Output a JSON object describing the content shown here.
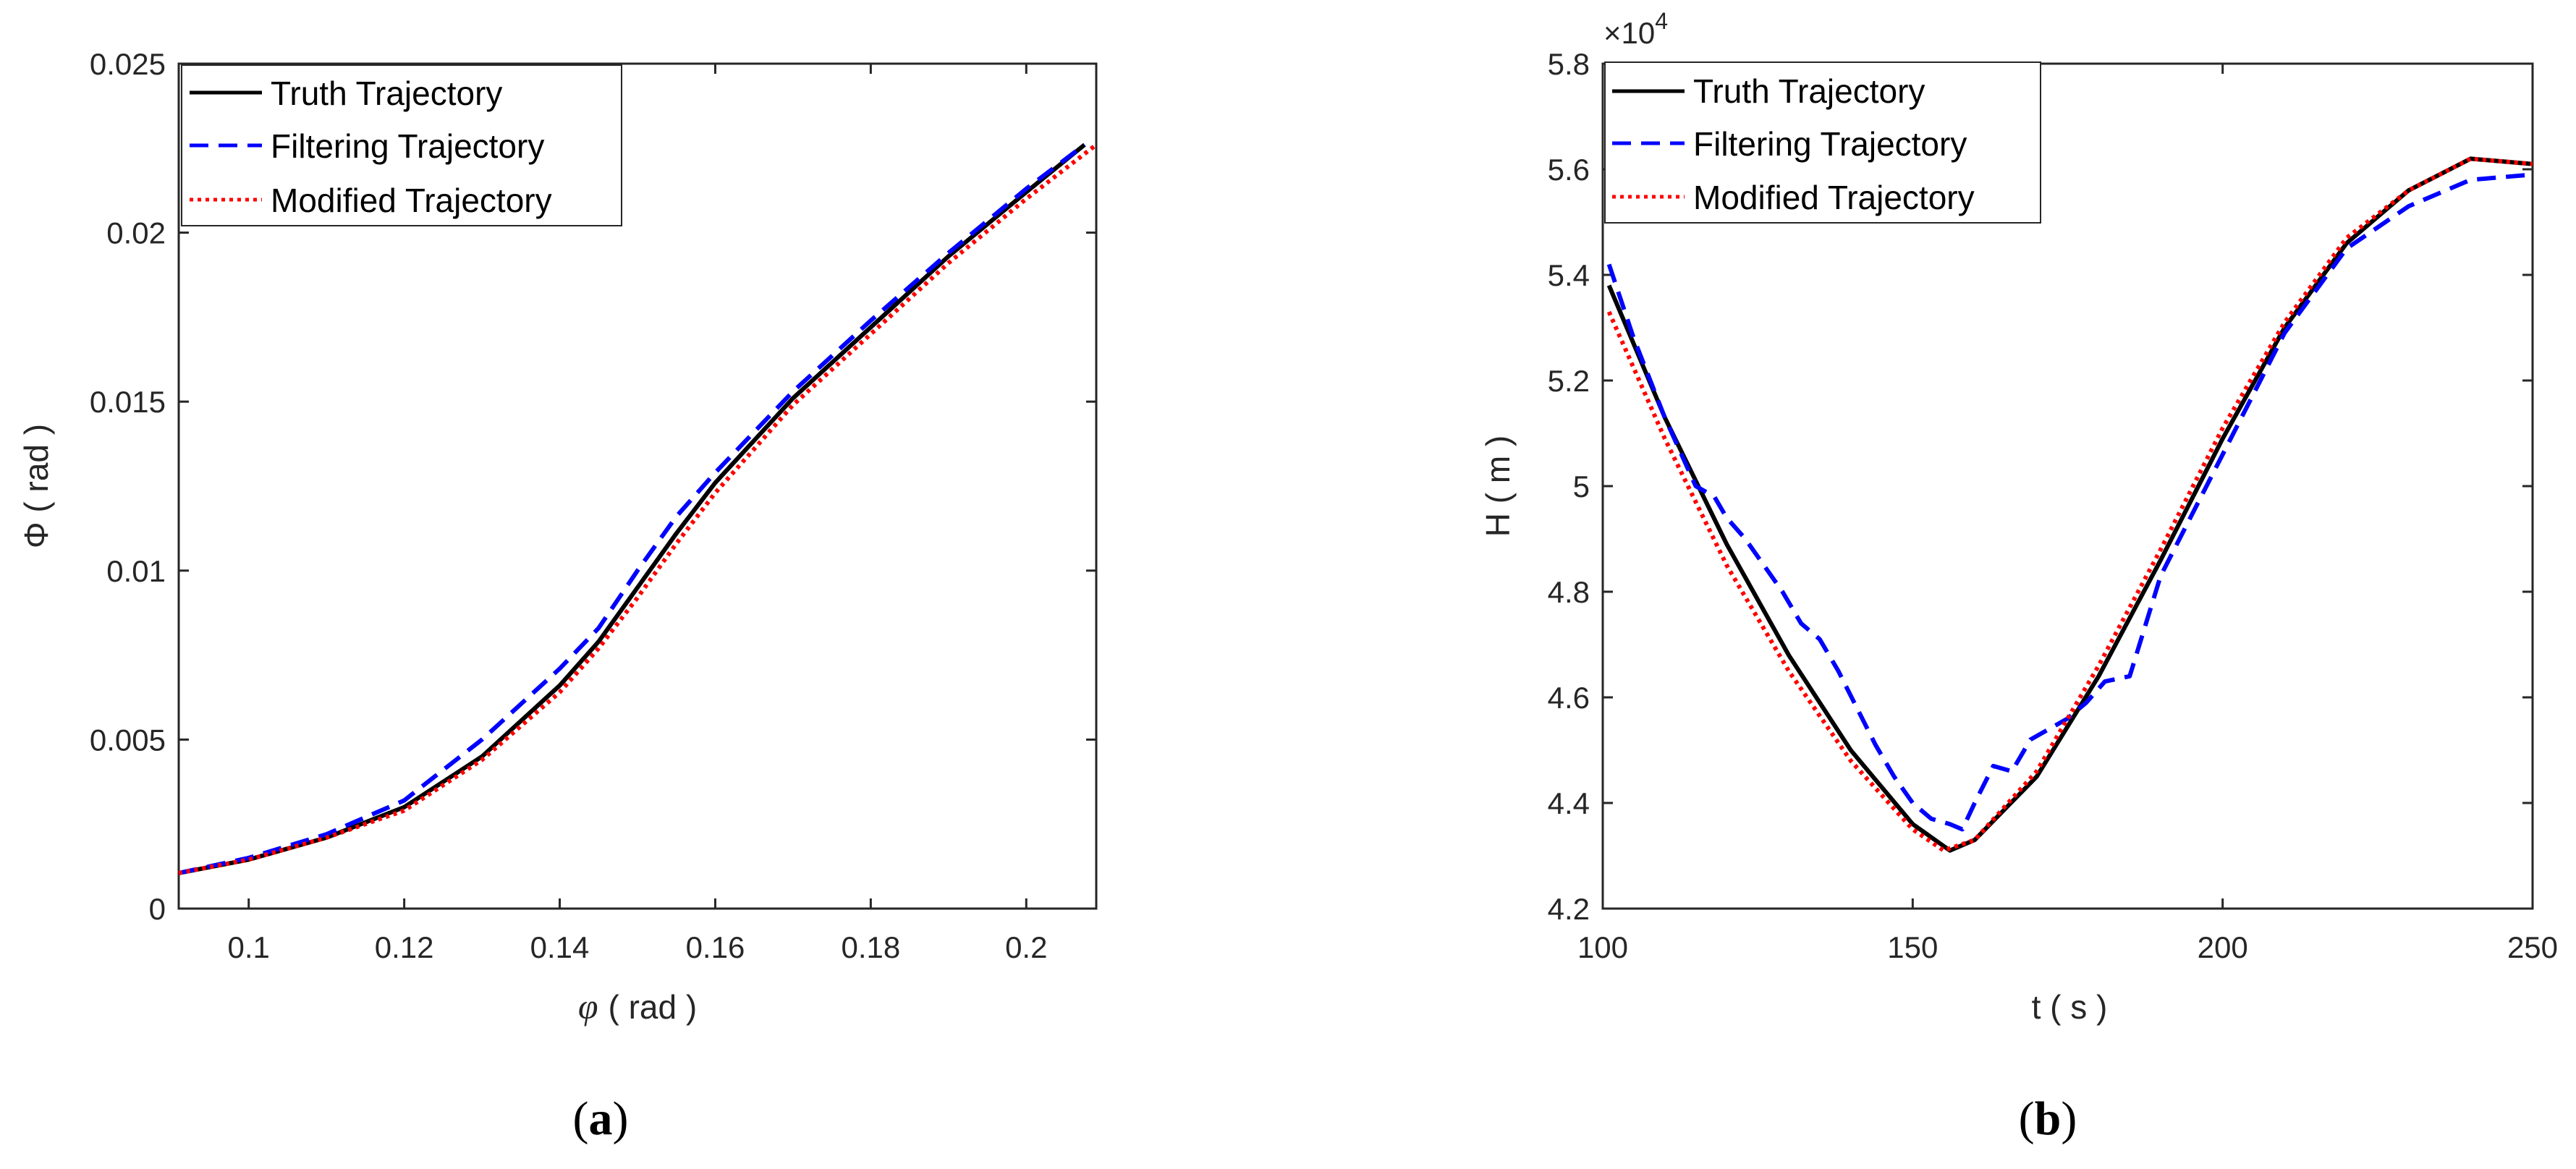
{
  "chart_data": [
    {
      "type": "line",
      "caption_letter": "a",
      "xlabel_symbol": "φ",
      "xlabel_unit": "( rad )",
      "ylabel": "Φ ( rad )",
      "xlim": [
        0.091,
        0.209
      ],
      "ylim": [
        0,
        0.025
      ],
      "xticks": [
        "0.1",
        "0.12",
        "0.14",
        "0.16",
        "0.18",
        "0.2"
      ],
      "xtick_values": [
        0.1,
        0.12,
        0.14,
        0.16,
        0.18,
        0.2
      ],
      "yticks": [
        "0",
        "0.005",
        "0.01",
        "0.015",
        "0.02",
        "0.025"
      ],
      "ytick_values": [
        0,
        0.005,
        0.01,
        0.015,
        0.02,
        0.025
      ],
      "legend_position": "top-left",
      "series": [
        {
          "name": "Truth Trajectory",
          "color": "#000000",
          "style": "solid",
          "x": [
            0.091,
            0.1,
            0.11,
            0.12,
            0.13,
            0.14,
            0.145,
            0.15,
            0.155,
            0.16,
            0.17,
            0.18,
            0.19,
            0.2,
            0.2075
          ],
          "y": [
            0.00105,
            0.00145,
            0.0021,
            0.003,
            0.0045,
            0.0066,
            0.0079,
            0.0095,
            0.0111,
            0.0126,
            0.0151,
            0.0172,
            0.0193,
            0.0212,
            0.0226
          ]
        },
        {
          "name": "Filtering Trajectory",
          "color": "#0000ff",
          "style": "dashed",
          "x": [
            0.091,
            0.1,
            0.11,
            0.12,
            0.13,
            0.14,
            0.145,
            0.15,
            0.155,
            0.16,
            0.17,
            0.18,
            0.19,
            0.2,
            0.2075
          ],
          "y": [
            0.00105,
            0.0015,
            0.0022,
            0.0032,
            0.005,
            0.0071,
            0.0083,
            0.01,
            0.0116,
            0.0129,
            0.0153,
            0.0174,
            0.0194,
            0.0213,
            0.0226
          ]
        },
        {
          "name": "Modified Trajectory",
          "color": "#ff0000",
          "style": "dotted",
          "x": [
            0.091,
            0.1,
            0.11,
            0.12,
            0.13,
            0.14,
            0.145,
            0.15,
            0.155,
            0.16,
            0.17,
            0.18,
            0.19,
            0.2,
            0.209
          ],
          "y": [
            0.00105,
            0.00145,
            0.0021,
            0.0029,
            0.0044,
            0.0064,
            0.0077,
            0.0092,
            0.0108,
            0.0123,
            0.0149,
            0.017,
            0.0191,
            0.021,
            0.0226
          ]
        }
      ]
    },
    {
      "type": "line",
      "caption_letter": "b",
      "xlabel": "t ( s )",
      "ylabel": "H ( m )",
      "y_multiplier": "×10",
      "y_multiplier_exp": "4",
      "xlim": [
        100,
        250
      ],
      "ylim": [
        4.2,
        5.8
      ],
      "xticks": [
        "100",
        "150",
        "200",
        "250"
      ],
      "xtick_values": [
        100,
        150,
        200,
        250
      ],
      "yticks": [
        "4.2",
        "4.4",
        "4.6",
        "4.8",
        "5",
        "5.2",
        "5.4",
        "5.6",
        "5.8"
      ],
      "ytick_values": [
        4.2,
        4.4,
        4.6,
        4.8,
        5.0,
        5.2,
        5.4,
        5.6,
        5.8
      ],
      "legend_position": "top-left",
      "series": [
        {
          "name": "Truth Trajectory",
          "color": "#000000",
          "style": "solid",
          "x": [
            101,
            110,
            120,
            130,
            140,
            150,
            156,
            160,
            170,
            180,
            190,
            200,
            210,
            220,
            230,
            240,
            250
          ],
          "y": [
            5.38,
            5.13,
            4.89,
            4.68,
            4.5,
            4.36,
            4.31,
            4.33,
            4.45,
            4.64,
            4.86,
            5.09,
            5.3,
            5.46,
            5.56,
            5.62,
            5.61
          ]
        },
        {
          "name": "Filtering Trajectory",
          "color": "#0000ff",
          "style": "dashed",
          "x": [
            101,
            105,
            110,
            115,
            118,
            120,
            123,
            126,
            129,
            132,
            135,
            138,
            141,
            144,
            147,
            150,
            153,
            156,
            158,
            160,
            163,
            166,
            169,
            172,
            175,
            178,
            181,
            185,
            190,
            200,
            210,
            220,
            230,
            240,
            250
          ],
          "y": [
            5.42,
            5.28,
            5.13,
            5.0,
            4.98,
            4.94,
            4.9,
            4.85,
            4.8,
            4.74,
            4.71,
            4.65,
            4.58,
            4.51,
            4.45,
            4.4,
            4.37,
            4.36,
            4.35,
            4.4,
            4.47,
            4.46,
            4.52,
            4.54,
            4.56,
            4.59,
            4.63,
            4.64,
            4.83,
            5.06,
            5.29,
            5.45,
            5.53,
            5.58,
            5.59
          ]
        },
        {
          "name": "Modified Trajectory",
          "color": "#ff0000",
          "style": "dotted",
          "x": [
            101,
            110,
            120,
            130,
            140,
            150,
            155,
            160,
            170,
            180,
            190,
            200,
            210,
            220,
            230,
            240,
            250
          ],
          "y": [
            5.33,
            5.09,
            4.85,
            4.65,
            4.48,
            4.35,
            4.31,
            4.33,
            4.46,
            4.66,
            4.88,
            5.11,
            5.31,
            5.47,
            5.56,
            5.62,
            5.61
          ]
        }
      ]
    }
  ]
}
